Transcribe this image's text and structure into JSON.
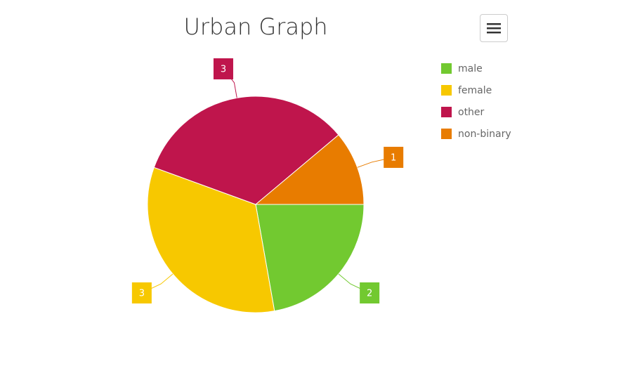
{
  "chart_data": {
    "type": "pie",
    "title": "Urban Graph",
    "categories": [
      "male",
      "female",
      "other",
      "non-binary"
    ],
    "values": [
      2,
      3,
      3,
      1
    ],
    "colors": [
      "#72c930",
      "#f7c800",
      "#bf154c",
      "#e87c00"
    ],
    "legend": "top-right"
  }
}
